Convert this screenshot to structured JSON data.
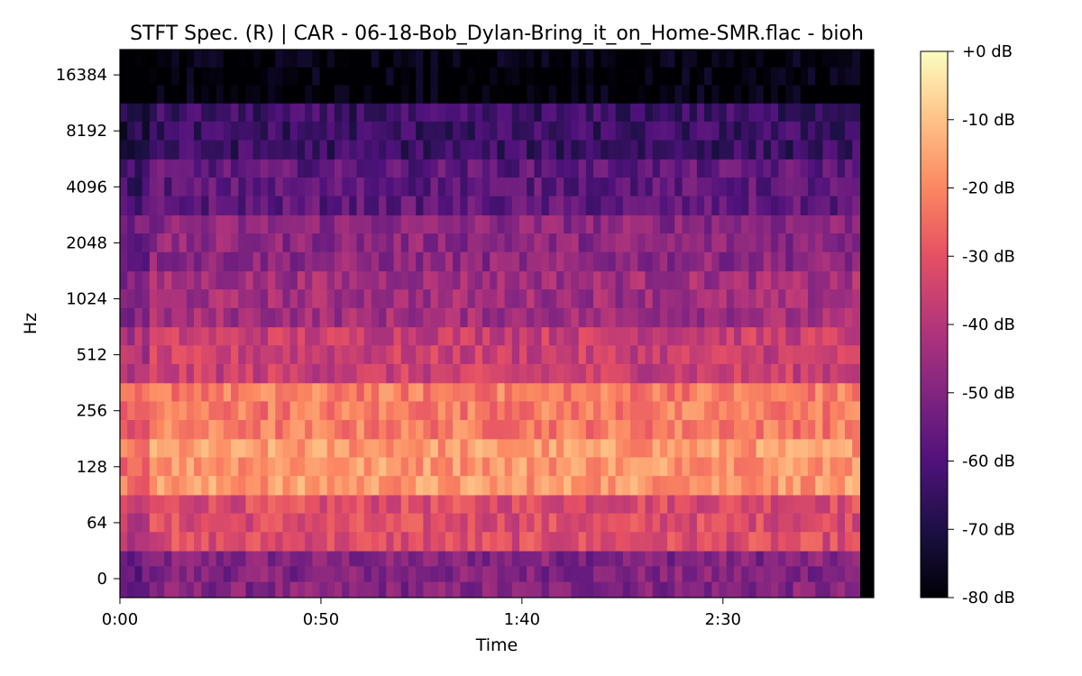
{
  "chart_data": {
    "type": "heatmap",
    "title": "STFT Spec. (R) | CAR - 06-18-Bob_Dylan-Bring_it_on_Home-SMR.flac - bioh",
    "xlabel": "Time",
    "ylabel": "Hz",
    "x_axis": {
      "unit": "seconds",
      "range": [
        0,
        187.5
      ],
      "ticks": [
        0,
        50,
        100,
        150
      ],
      "tick_labels": [
        "0:00",
        "0:50",
        "1:40",
        "2:30"
      ]
    },
    "y_axis": {
      "scale": "log2",
      "tick_labels": [
        "0",
        "64",
        "128",
        "256",
        "512",
        "1024",
        "2048",
        "4096",
        "8192",
        "16384"
      ]
    },
    "colorbar": {
      "colormap": "magma",
      "unit": "dB",
      "range": [
        -80,
        0
      ],
      "tick_labels": [
        "+0 dB",
        "-10 dB",
        "-20 dB",
        "-30 dB",
        "-40 dB",
        "-50 dB",
        "-60 dB",
        "-70 dB",
        "-80 dB"
      ]
    },
    "audio_end_time": 184,
    "level_profile_by_band": [
      {
        "band": "0",
        "level_db": -50
      },
      {
        "band": "64",
        "level_db": -32
      },
      {
        "band": "128",
        "level_db": -17
      },
      {
        "band": "256",
        "level_db": -22
      },
      {
        "band": "512",
        "level_db": -36
      },
      {
        "band": "1024",
        "level_db": -44
      },
      {
        "band": "2048",
        "level_db": -48
      },
      {
        "band": "4096",
        "level_db": -57
      },
      {
        "band": "8192",
        "level_db": -64
      },
      {
        "band": "16384",
        "level_db": -80
      }
    ]
  }
}
